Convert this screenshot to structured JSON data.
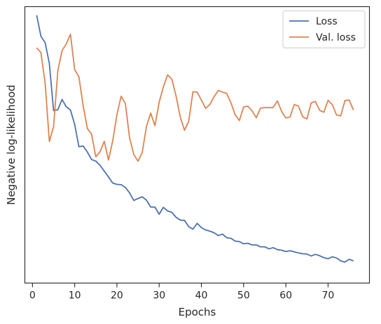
{
  "chart_data": {
    "type": "line",
    "xlabel": "Epochs",
    "ylabel": "Negative log-likelihood",
    "xlim": [
      -1.8,
      79.8
    ],
    "ylim": [
      0,
      100
    ],
    "xticks": [
      0,
      10,
      20,
      30,
      40,
      50,
      60,
      70
    ],
    "x": [
      1,
      2,
      3,
      4,
      5,
      6,
      7,
      8,
      9,
      10,
      11,
      12,
      13,
      14,
      15,
      16,
      17,
      18,
      19,
      20,
      21,
      22,
      23,
      24,
      25,
      26,
      27,
      28,
      29,
      30,
      31,
      32,
      33,
      34,
      35,
      36,
      37,
      38,
      39,
      40,
      41,
      42,
      43,
      44,
      45,
      46,
      47,
      48,
      49,
      50,
      51,
      52,
      53,
      54,
      55,
      56,
      57,
      58,
      59,
      60,
      61,
      62,
      63,
      64,
      65,
      66,
      67,
      68,
      69,
      70,
      71,
      72,
      73,
      74,
      75,
      76
    ],
    "legend_position": "upper-right",
    "series": [
      {
        "name": "Loss",
        "color": "#4c72b0",
        "values": [
          96.9,
          89.3,
          87.0,
          79.4,
          62.4,
          62.7,
          66.4,
          63.8,
          62.6,
          57.4,
          49.3,
          49.6,
          47.4,
          44.7,
          44.1,
          42.6,
          40.5,
          38.4,
          36.2,
          35.7,
          35.6,
          34.6,
          32.6,
          29.9,
          30.6,
          31.2,
          30.0,
          27.5,
          27.5,
          24.9,
          27.4,
          26.1,
          25.6,
          23.8,
          22.8,
          22.7,
          20.4,
          19.5,
          21.6,
          20.1,
          19.2,
          18.8,
          18.2,
          17.2,
          17.7,
          16.4,
          16.2,
          15.2,
          15.0,
          14.2,
          14.4,
          13.8,
          13.8,
          13.1,
          13.1,
          12.4,
          12.8,
          12.1,
          11.9,
          11.4,
          11.7,
          11.3,
          10.9,
          10.6,
          10.5,
          9.8,
          10.4,
          9.9,
          9.2,
          8.8,
          9.5,
          9.1,
          8.0,
          7.6,
          8.6,
          8.0
        ]
      },
      {
        "name": "Val. loss",
        "color": "#dd8452",
        "values": [
          85.1,
          83.4,
          72.4,
          51.2,
          56.6,
          76.7,
          84.1,
          86.5,
          90.0,
          77.2,
          74.6,
          64.2,
          55.9,
          53.9,
          45.7,
          47.5,
          51.3,
          44.5,
          51.4,
          60.9,
          67.6,
          64.9,
          52.5,
          46.5,
          44.1,
          47.3,
          56.7,
          61.5,
          56.9,
          65.4,
          71.0,
          75.3,
          73.8,
          67.7,
          60.1,
          55.3,
          58.5,
          69.2,
          69.1,
          66.2,
          63.2,
          64.6,
          67.4,
          69.7,
          69.1,
          68.6,
          65.2,
          60.9,
          58.8,
          63.7,
          64.0,
          62.3,
          59.8,
          63.3,
          63.5,
          63.5,
          63.5,
          65.9,
          62.1,
          59.7,
          60.1,
          64.6,
          64.0,
          60.1,
          59.4,
          65.2,
          65.7,
          62.5,
          61.8,
          66.1,
          64.6,
          60.8,
          60.5,
          66.0,
          66.2,
          62.6
        ]
      }
    ]
  }
}
